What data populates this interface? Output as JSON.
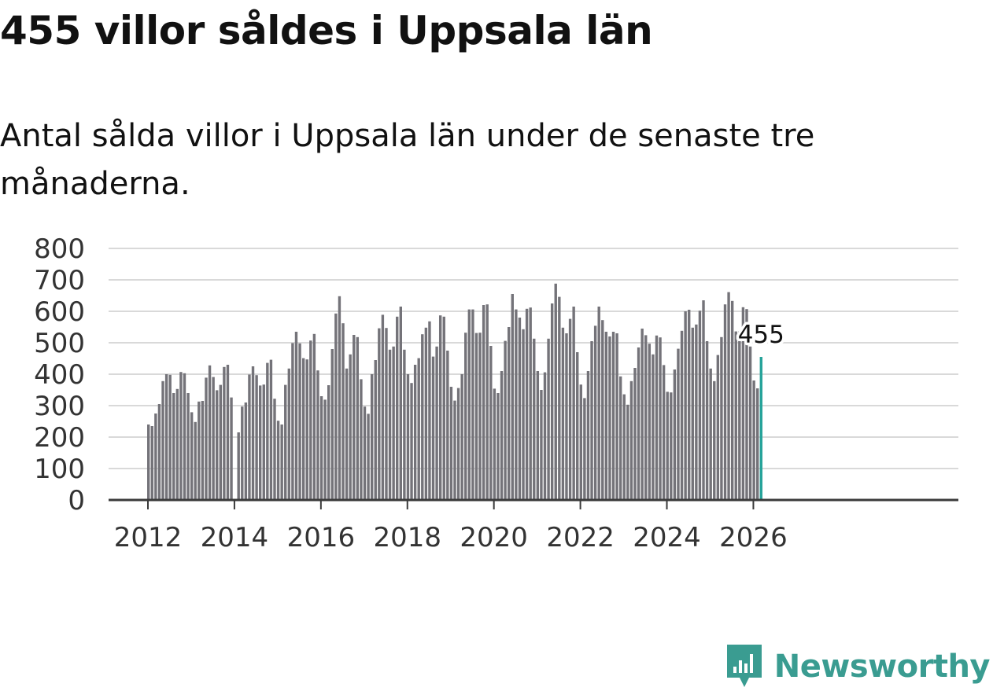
{
  "header": {
    "title": "455 villor såldes i Uppsala län",
    "subtitle": "Antal sålda villor i Uppsala län under de senaste tre månaderna."
  },
  "brand": {
    "name": "Newsworthy"
  },
  "colors": {
    "bar": "#747379",
    "highlight": "#27a39a",
    "grid": "#d9d9d9",
    "axis": "#3a3a3a",
    "brand": "#3a9c91"
  },
  "chart_data": {
    "type": "bar",
    "title": "",
    "xlabel": "",
    "ylabel": "",
    "ylim": [
      0,
      800
    ],
    "yticks": [
      "0",
      "100",
      "200",
      "300",
      "400",
      "500",
      "600",
      "700",
      "800"
    ],
    "xticks": [
      "2012",
      "2014",
      "2016",
      "2018",
      "2020",
      "2022",
      "2024",
      "2026"
    ],
    "start": "2012-01",
    "frequency": "monthly",
    "highlight_label": "455",
    "values": [
      240,
      235,
      275,
      305,
      378,
      400,
      398,
      340,
      353,
      407,
      403,
      340,
      279,
      248,
      313,
      315,
      389,
      428,
      391,
      349,
      366,
      423,
      430,
      326,
      null,
      215,
      297,
      310,
      399,
      425,
      397,
      364,
      367,
      436,
      446,
      322,
      252,
      240,
      366,
      418,
      499,
      535,
      498,
      451,
      447,
      507,
      528,
      412,
      330,
      319,
      365,
      480,
      593,
      648,
      562,
      418,
      463,
      525,
      518,
      384,
      297,
      274,
      400,
      445,
      546,
      589,
      547,
      478,
      488,
      583,
      615,
      478,
      400,
      372,
      430,
      451,
      527,
      548,
      568,
      456,
      488,
      587,
      583,
      475,
      360,
      316,
      356,
      400,
      532,
      606,
      606,
      531,
      532,
      620,
      622,
      490,
      354,
      340,
      410,
      506,
      550,
      655,
      606,
      580,
      543,
      608,
      612,
      513,
      410,
      350,
      406,
      513,
      625,
      688,
      646,
      548,
      530,
      576,
      615,
      470,
      367,
      324,
      410,
      505,
      554,
      615,
      572,
      535,
      520,
      535,
      530,
      393,
      336,
      303,
      378,
      420,
      485,
      545,
      524,
      497,
      463,
      523,
      517,
      429,
      344,
      342,
      415,
      481,
      538,
      600,
      605,
      548,
      558,
      602,
      635,
      505,
      418,
      378,
      461,
      518,
      622,
      661,
      633,
      536,
      536,
      613,
      607,
      488,
      380,
      355,
      455
    ]
  }
}
